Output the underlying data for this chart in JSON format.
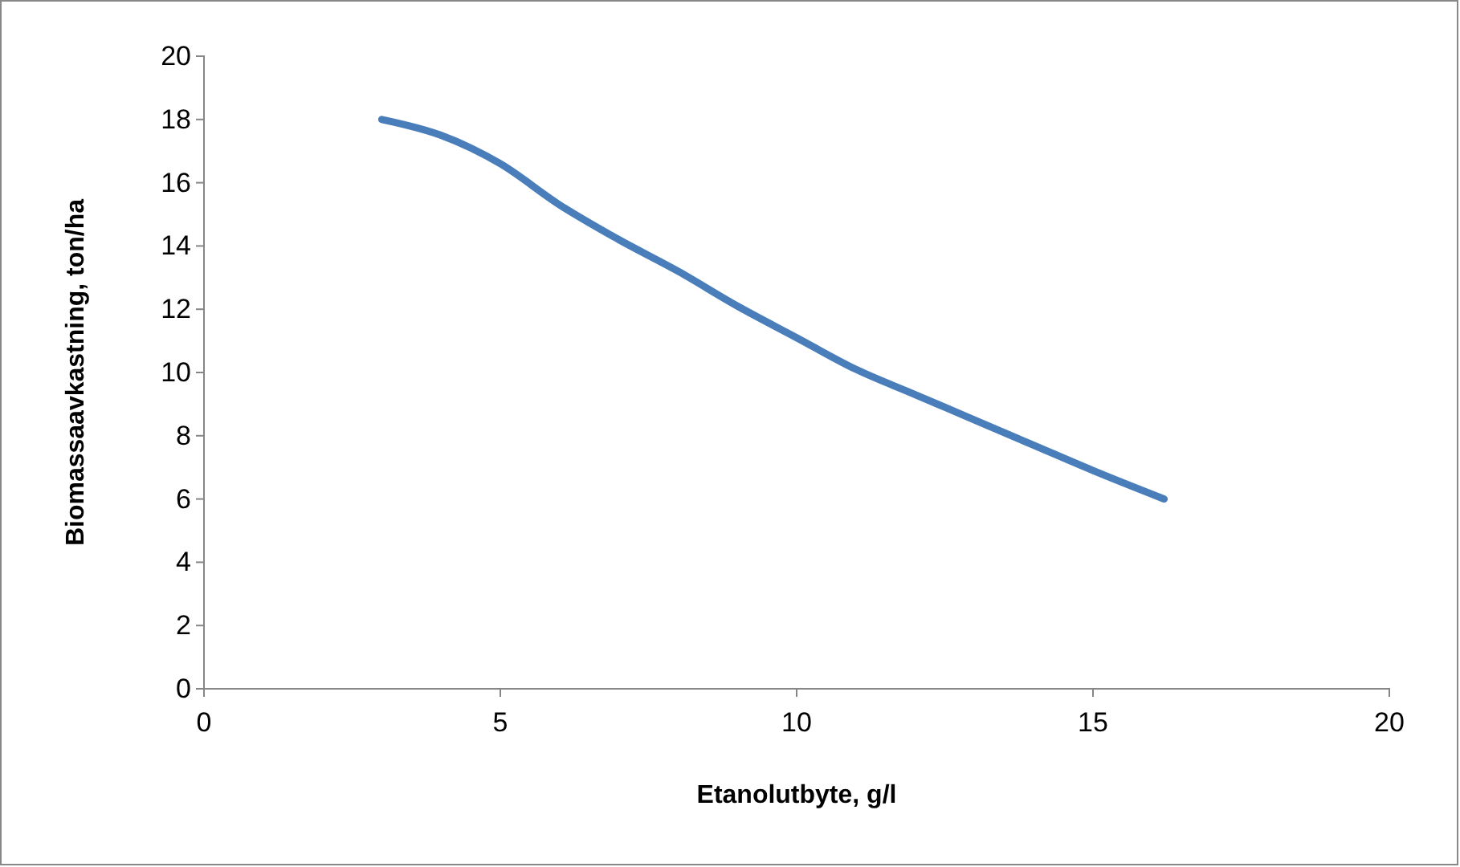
{
  "chart_data": {
    "type": "line",
    "xlabel": "Etanolutbyte, g/l",
    "ylabel": "Biomassaavkastning, ton/ha",
    "x": [
      3,
      4,
      4.5,
      5,
      6,
      7,
      8,
      9,
      10,
      11,
      12,
      13,
      14,
      15,
      16.2
    ],
    "series": [
      {
        "color": "#4a7ebb",
        "values": [
          18,
          17.5,
          17.1,
          16.6,
          15.3,
          14.2,
          13.2,
          12.1,
          11.1,
          10.1,
          9.3,
          8.5,
          7.7,
          6.9,
          6
        ]
      }
    ],
    "xlim": [
      0,
      20
    ],
    "xticks": [
      0,
      5,
      10,
      15,
      20
    ],
    "ylim": [
      0,
      20
    ],
    "yticks": [
      0,
      2,
      4,
      6,
      8,
      10,
      12,
      14,
      16,
      18,
      20
    ],
    "grid": false,
    "marker": "none",
    "line_style": "solid"
  }
}
